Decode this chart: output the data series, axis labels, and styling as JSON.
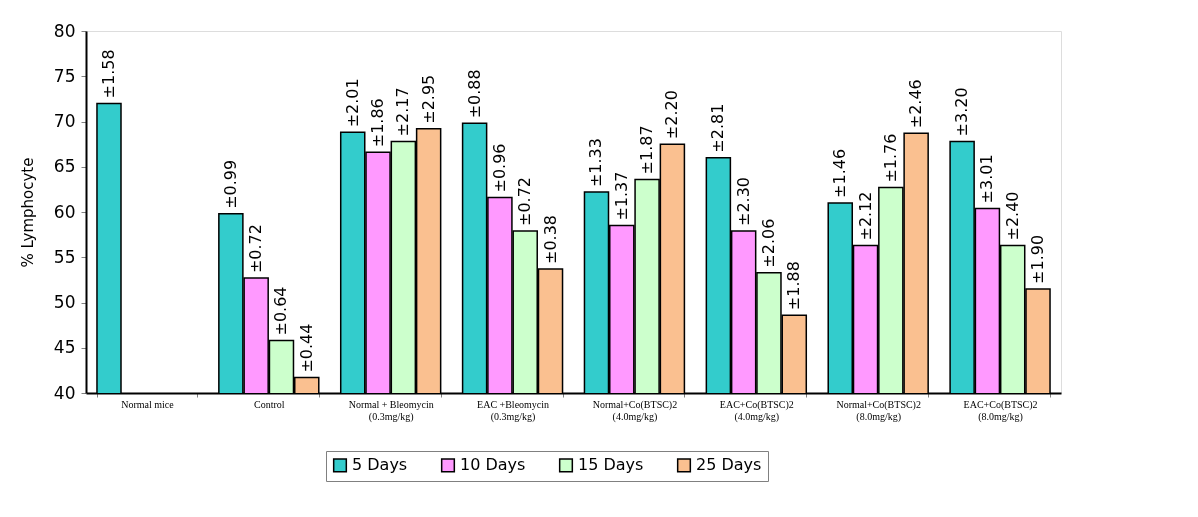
{
  "chart_data": {
    "type": "bar",
    "ylabel": "% Lymphocyte",
    "categories": [
      "Normal mice",
      "Control",
      "Normal + Bleomycin\n(0.3mg/kg)",
      "EAC +Bleomycin\n(0.3mg/kg)",
      "Normal+Co(BTSC)2\n(4.0mg/kg)",
      "EAC+Co(BTSC)2\n(4.0mg/kg)",
      "Normal+Co(BTSC)2\n(8.0mg/kg)",
      "EAC+Co(BTSC)2\n(8.0mg/kg)"
    ],
    "series": [
      {
        "name": "5 Days",
        "color": "#33cccc",
        "values": [
          72.0,
          59.8,
          68.8,
          69.8,
          62.2,
          66.0,
          61.0,
          67.8
        ]
      },
      {
        "name": "10 Days",
        "color": "#ff99ff",
        "values": [
          null,
          52.7,
          66.6,
          61.6,
          58.5,
          57.9,
          56.3,
          60.4
        ]
      },
      {
        "name": "15 Days",
        "color": "#ccffcc",
        "values": [
          null,
          45.8,
          67.8,
          57.9,
          63.6,
          53.3,
          62.7,
          56.3
        ]
      },
      {
        "name": "25 Days",
        "color": "#fac090",
        "values": [
          null,
          41.7,
          69.2,
          53.7,
          67.5,
          48.6,
          68.7,
          51.5
        ]
      }
    ],
    "annotations": [
      "±1.58",
      "±0.99",
      "±0.72",
      "±0.64",
      "±0.44",
      "±2.01",
      "±1.86",
      "±2.17",
      "±2.95",
      "±0.88",
      "±0.96",
      "±0.72",
      "±0.38",
      "±1.33",
      "±1.37",
      "±1.87",
      "±2.20",
      "±2.81",
      "±2.30",
      "±2.06",
      "±1.88",
      "±1.46",
      "±2.12",
      "±1.76",
      "±2.46",
      "±3.20",
      "±3.01",
      "±2.40",
      "±1.90"
    ],
    "ylim": [
      40,
      80
    ],
    "yticks": [
      40,
      45,
      50,
      55,
      60,
      65,
      70,
      75,
      80
    ],
    "grid": false,
    "legend": "bottom"
  }
}
